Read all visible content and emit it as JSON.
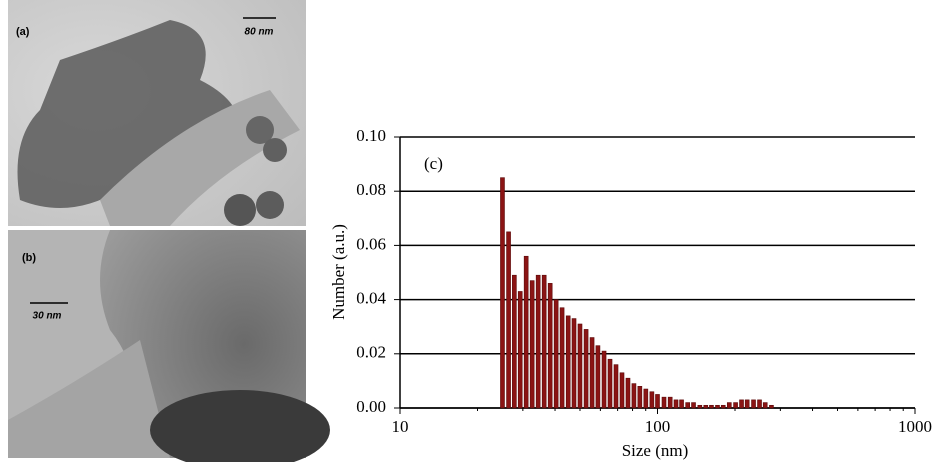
{
  "images": [
    {
      "label": "(a)",
      "scale_bar": "80 nm"
    },
    {
      "label": "(b)",
      "scale_bar": "30 nm"
    }
  ],
  "chart_data": {
    "type": "bar",
    "annotation": "(c)",
    "x_label": "Size (nm)",
    "y_label": "Number (a.u.)",
    "x": [
      25,
      26.4,
      27.8,
      29.3,
      30.9,
      32.6,
      34.4,
      36.3,
      38.3,
      40.4,
      42.6,
      45,
      47.4,
      50,
      52.8,
      55.7,
      58.7,
      62,
      65.4,
      69,
      72.8,
      76.8,
      81,
      85.4,
      90.1,
      95.1,
      100,
      106,
      112,
      118,
      124,
      131,
      138,
      146,
      154,
      162,
      171,
      180,
      190,
      201,
      212,
      223,
      236,
      249,
      262,
      277
    ],
    "values": [
      0.085,
      0.065,
      0.049,
      0.043,
      0.056,
      0.047,
      0.049,
      0.049,
      0.046,
      0.04,
      0.037,
      0.034,
      0.033,
      0.031,
      0.029,
      0.026,
      0.023,
      0.021,
      0.018,
      0.016,
      0.013,
      0.011,
      0.009,
      0.008,
      0.007,
      0.006,
      0.005,
      0.004,
      0.004,
      0.003,
      0.003,
      0.002,
      0.002,
      0.001,
      0.001,
      0.001,
      0.001,
      0.001,
      0.002,
      0.002,
      0.003,
      0.003,
      0.003,
      0.003,
      0.002,
      0.001
    ],
    "color": "#8b1414",
    "xlog": true,
    "grid": true,
    "xlim": [
      10,
      1000
    ],
    "xticks": [
      10,
      100,
      1000
    ],
    "ylim": [
      0,
      0.1
    ],
    "yticks": [
      {
        "value": 0,
        "label": "0.00"
      },
      0.02,
      0.04,
      0.06,
      0.08,
      {
        "value": 0.1,
        "label": "0.10"
      }
    ]
  }
}
